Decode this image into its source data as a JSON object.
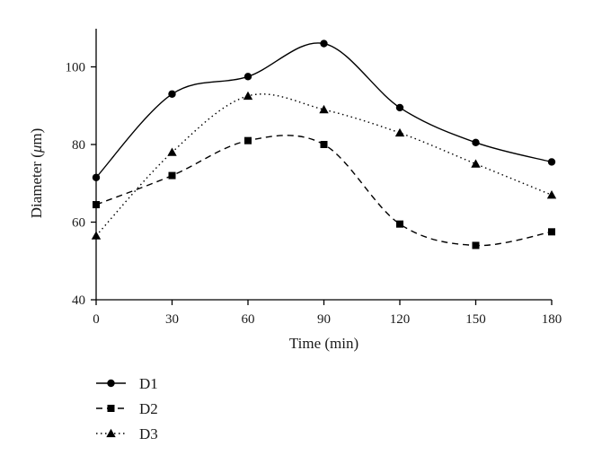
{
  "chart_data": {
    "type": "line",
    "title": "",
    "xlabel": "Time (min)",
    "ylabel_prefix": "Diameter (",
    "ylabel_unit": "μ",
    "ylabel_suffix": "m)",
    "x": [
      0,
      30,
      60,
      90,
      120,
      150,
      180
    ],
    "xlim": [
      0,
      180
    ],
    "ylim": [
      40,
      110
    ],
    "xticks": [
      0,
      30,
      60,
      90,
      120,
      150,
      180
    ],
    "yticks": [
      40,
      60,
      80,
      100
    ],
    "grid": false,
    "legend_position": "bottom-left",
    "series": [
      {
        "name": "D1",
        "marker": "circle",
        "dash": "solid",
        "values": [
          71.5,
          93.0,
          97.5,
          106.0,
          89.5,
          80.5,
          75.5
        ]
      },
      {
        "name": "D2",
        "marker": "square",
        "dash": "dashed",
        "values": [
          64.5,
          72.0,
          81.0,
          80.0,
          59.5,
          54.0,
          57.5
        ]
      },
      {
        "name": "D3",
        "marker": "triangle",
        "dash": "dotted",
        "values": [
          56.5,
          78.0,
          92.5,
          89.0,
          83.0,
          75.0,
          67.0
        ]
      }
    ]
  }
}
